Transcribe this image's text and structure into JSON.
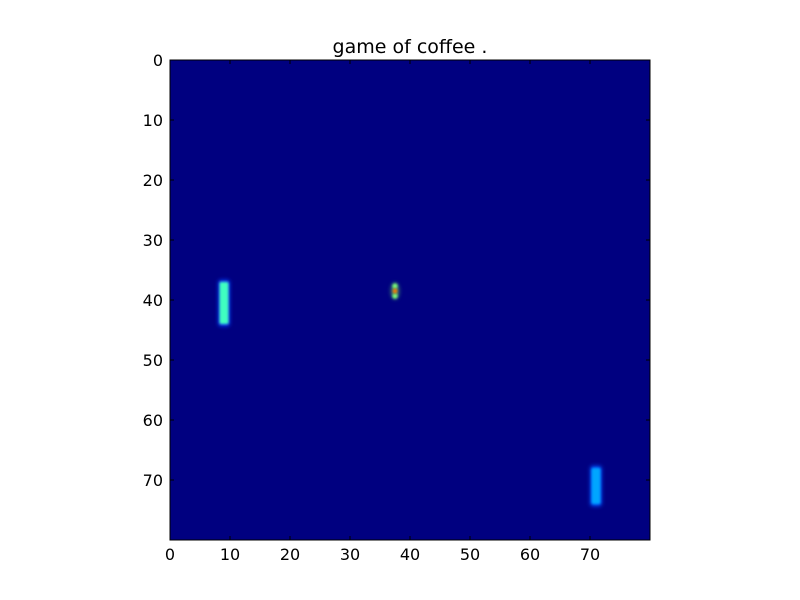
{
  "title": "game of coffee .",
  "colors": {
    "background": "#000080",
    "left_paddle": "#40ffc0",
    "left_paddle_glow": "#0a3dff",
    "right_paddle": "#00a6ff",
    "right_paddle_glow": "#0050ff",
    "ball_outer": "#7dff7a",
    "ball_center": "#ff7a00",
    "axes_frame": "#000000"
  },
  "grid": {
    "width": 80,
    "height": 80
  },
  "axes": {
    "x_ticks": [
      0,
      10,
      20,
      30,
      40,
      50,
      60,
      70
    ],
    "y_ticks": [
      0,
      10,
      20,
      30,
      40,
      50,
      60,
      70
    ],
    "xlim": [
      0,
      80
    ],
    "ylim": [
      80,
      0
    ]
  },
  "game": {
    "left_paddle": {
      "x": 9,
      "y_top": 37,
      "y_bottom": 44,
      "thickness": 1.5
    },
    "right_paddle": {
      "x": 71,
      "y_top": 68,
      "y_bottom": 74,
      "thickness": 1.5
    },
    "ball": {
      "x": 37.5,
      "y": 38.5
    }
  }
}
